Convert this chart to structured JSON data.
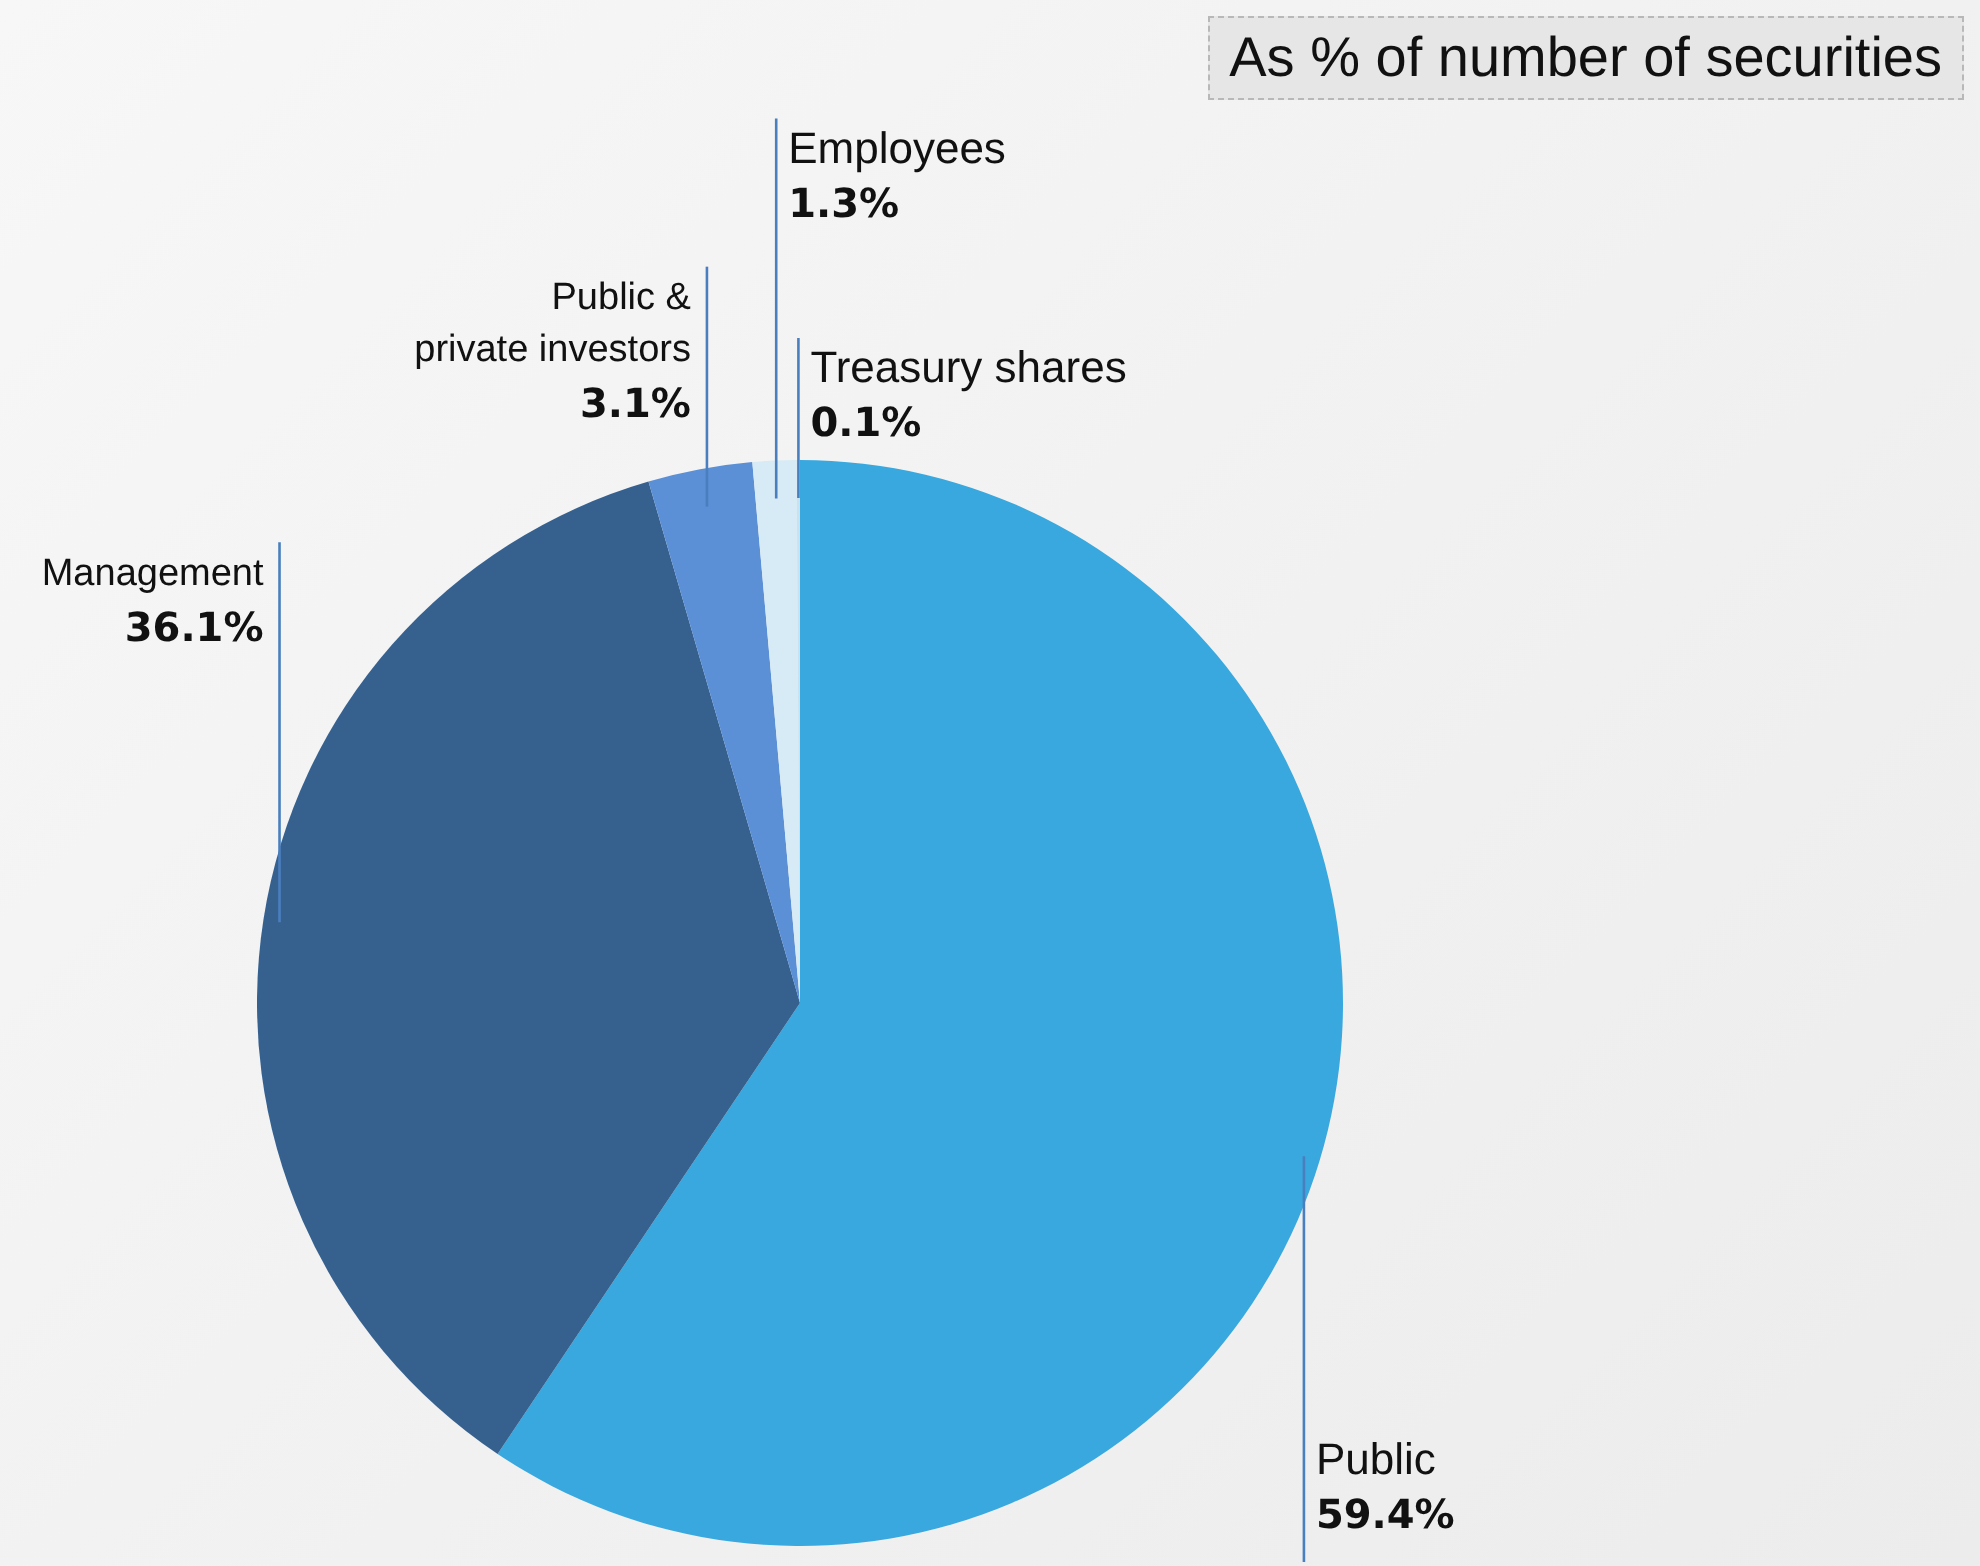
{
  "chart_data": {
    "type": "pie",
    "title": "As % of number of securities",
    "categories": [
      "Public",
      "Management",
      "Public & private investors",
      "Employees",
      "Treasury shares"
    ],
    "values": [
      59.4,
      36.1,
      3.1,
      1.3,
      0.1
    ],
    "colors": [
      "#38a8df",
      "#36618f",
      "#5b8fd6",
      "#d6ebf5",
      "#c9e2ef"
    ],
    "value_labels": [
      "59.4%",
      "36.1%",
      "3.1%",
      "1.3%",
      "0.1%"
    ],
    "legend": false
  }
}
